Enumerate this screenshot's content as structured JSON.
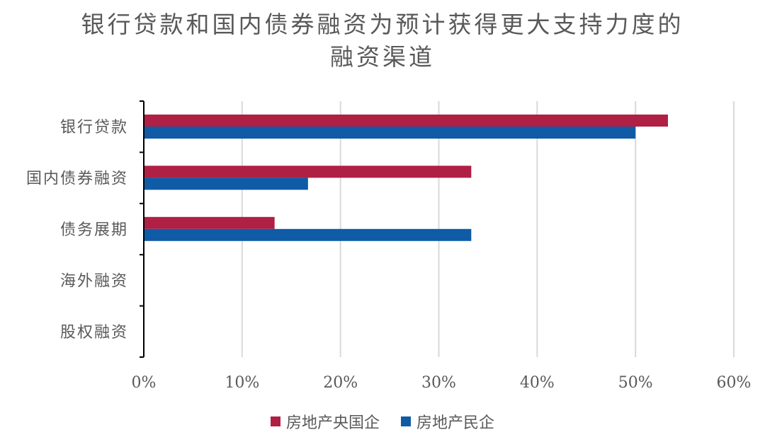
{
  "chart_data": {
    "type": "bar",
    "orientation": "horizontal",
    "title_lines": [
      "银行贷款和国内债券融资为预计获得更大支持力度的",
      "融资渠道"
    ],
    "categories": [
      "银行贷款",
      "国内债券融资",
      "债务展期",
      "海外融资",
      "股权融资"
    ],
    "series": [
      {
        "name": "房地产央国企",
        "color": "#B01F44",
        "values": [
          53.3,
          33.3,
          13.3,
          0,
          0
        ]
      },
      {
        "name": "房地产民企",
        "color": "#0F5BA6",
        "values": [
          50.0,
          16.7,
          33.3,
          0,
          0
        ]
      }
    ],
    "xlim": [
      0,
      60
    ],
    "x_ticks": [
      "0%",
      "10%",
      "20%",
      "30%",
      "40%",
      "50%",
      "60%"
    ],
    "grid": true,
    "legend_position": "bottom"
  }
}
